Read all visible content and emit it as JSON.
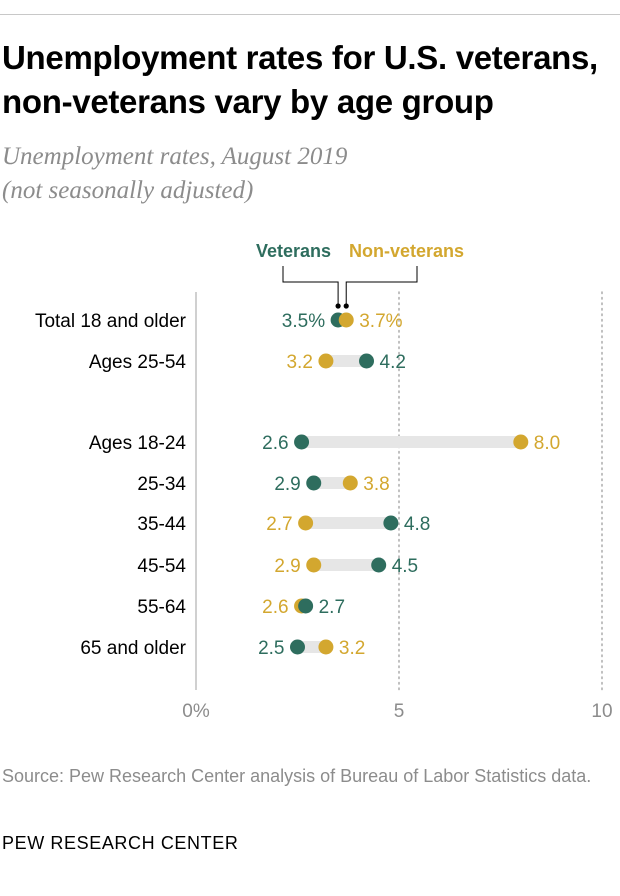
{
  "title": "Unemployment rates for U.S. veterans, non-veterans vary by age group",
  "subtitle_line1": "Unemployment rates, August 2019",
  "subtitle_line2": "(not seasonally adjusted)",
  "source": "Source: Pew Research Center analysis of Bureau of Labor Statistics data.",
  "brand": "PEW RESEARCH CENTER",
  "colors": {
    "veterans": "#2e6d5e",
    "non_veterans": "#d3a72f",
    "range_bar": "#e6e6e6",
    "axis": "#b0b0b0",
    "muted_text": "#8c8c8c"
  },
  "chart_data": {
    "type": "dumbbell",
    "legend": {
      "veterans": "Veterans",
      "non_veterans": "Non-veterans",
      "placement": "top"
    },
    "xlim": [
      0,
      10
    ],
    "x_ticks": [
      {
        "value": 0,
        "label": "0%"
      },
      {
        "value": 5,
        "label": "5"
      },
      {
        "value": 10,
        "label": "10"
      }
    ],
    "gridlines": [
      5,
      10
    ],
    "categories": [
      "Total 18 and older",
      "Ages 25-54",
      "Ages 18-24",
      "25-34",
      "35-44",
      "45-54",
      "55-64",
      "65 and older"
    ],
    "series": [
      {
        "name": "Veterans",
        "values": [
          3.5,
          4.2,
          2.6,
          2.9,
          4.8,
          4.5,
          2.7,
          2.5
        ],
        "labels": [
          "3.5%",
          "4.2",
          "2.6",
          "2.9",
          "4.8",
          "4.5",
          "2.7",
          "2.5"
        ]
      },
      {
        "name": "Non-veterans",
        "values": [
          3.7,
          3.2,
          8.0,
          3.8,
          2.7,
          2.9,
          2.6,
          3.2
        ],
        "labels": [
          "3.7%",
          "3.2",
          "8.0",
          "3.8",
          "2.7",
          "2.9",
          "2.6",
          "3.2"
        ]
      }
    ]
  }
}
